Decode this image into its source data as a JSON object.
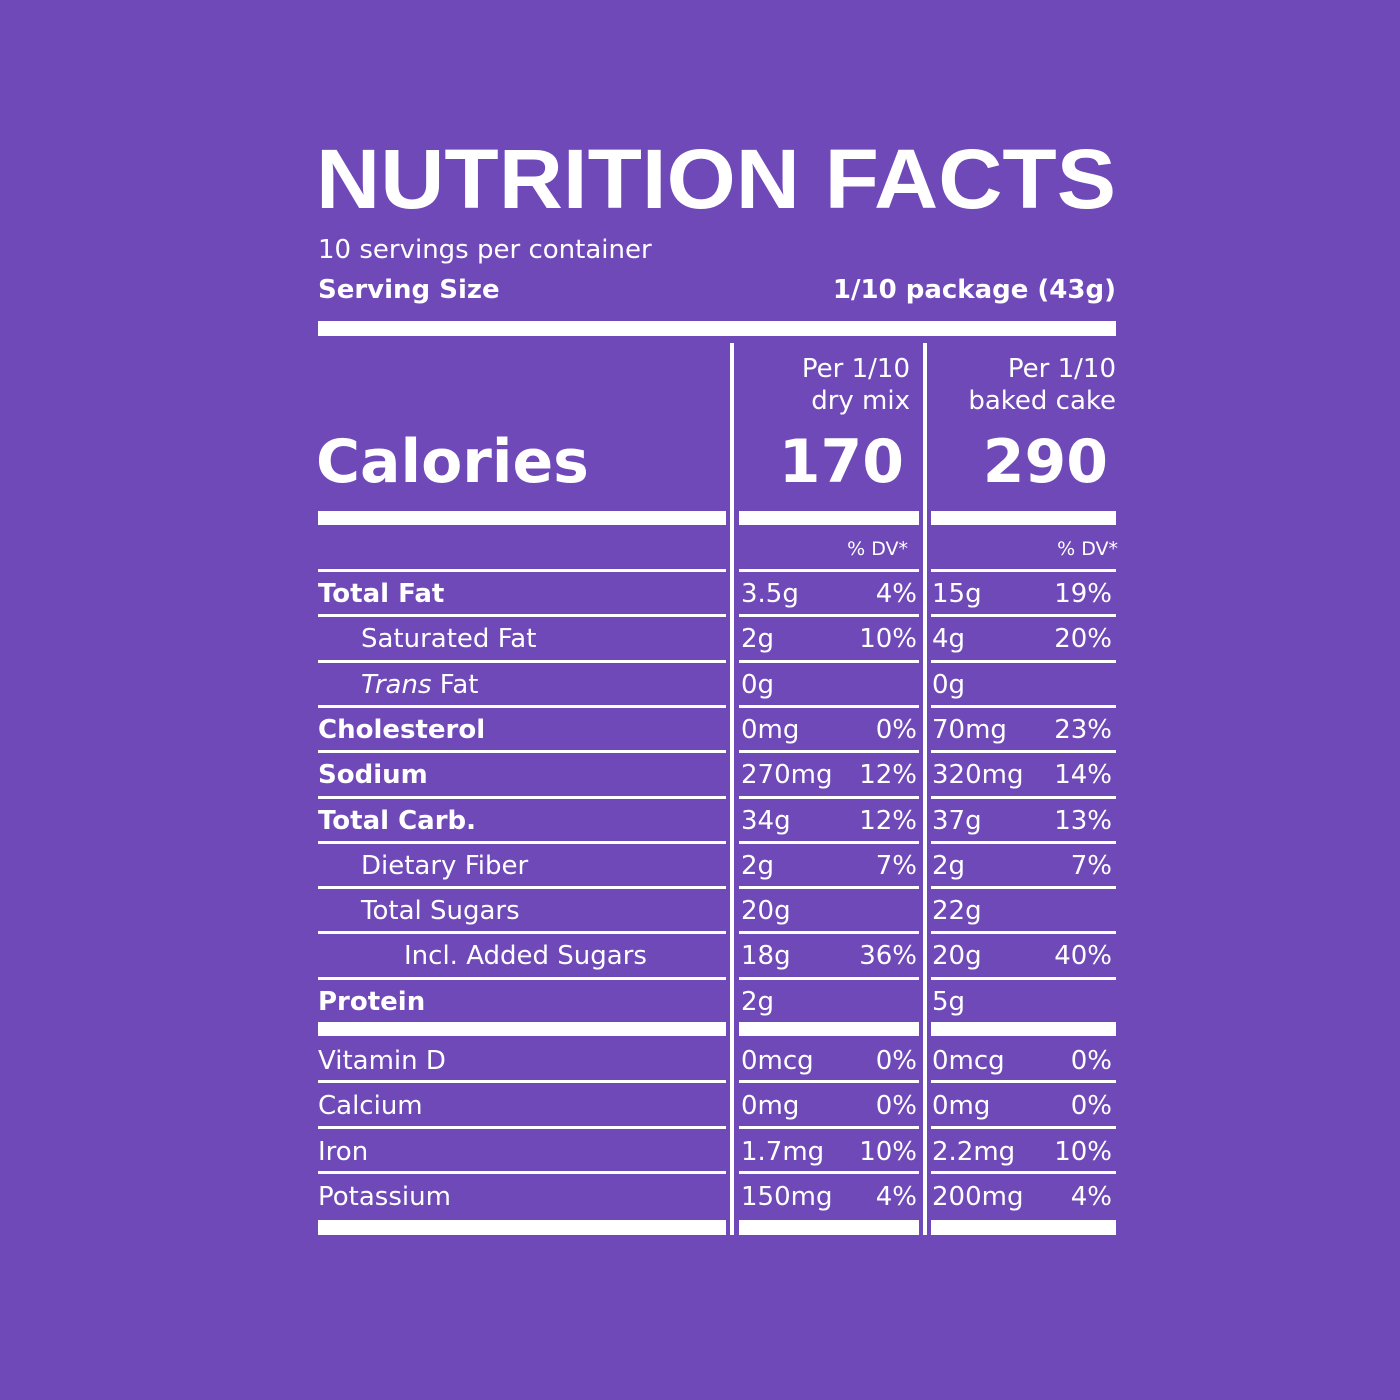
{
  "title": "NUTRITION FACTS",
  "servings": "10 servings per container",
  "serving_size_label": "Serving Size",
  "serving_size_value": "1/10 package (43g)",
  "columns": [
    {
      "line1": "Per 1/10",
      "line2": "dry mix",
      "calories": "170",
      "dv_label": "% DV*"
    },
    {
      "line1": "Per 1/10",
      "line2": "baked cake",
      "calories": "290",
      "dv_label": "% DV*"
    }
  ],
  "calories_label": "Calories",
  "nutrients": [
    {
      "label": "Total Fat",
      "bold": true,
      "indent": 0,
      "a1": "3.5g",
      "p1": "4%",
      "a2": "15g",
      "p2": "19%"
    },
    {
      "label": "Saturated Fat",
      "bold": false,
      "indent": 1,
      "a1": "2g",
      "p1": "10%",
      "a2": "4g",
      "p2": "20%"
    },
    {
      "label": " Fat",
      "italic_prefix": "Trans",
      "bold": false,
      "indent": 1,
      "a1": "0g",
      "p1": "",
      "a2": "0g",
      "p2": ""
    },
    {
      "label": "Cholesterol",
      "bold": true,
      "indent": 0,
      "a1": "0mg",
      "p1": "0%",
      "a2": "70mg",
      "p2": "23%"
    },
    {
      "label": "Sodium",
      "bold": true,
      "indent": 0,
      "a1": "270mg",
      "p1": "12%",
      "a2": "320mg",
      "p2": "14%"
    },
    {
      "label": "Total Carb.",
      "bold": true,
      "indent": 0,
      "a1": "34g",
      "p1": "12%",
      "a2": "37g",
      "p2": "13%"
    },
    {
      "label": "Dietary Fiber",
      "bold": false,
      "indent": 1,
      "a1": "2g",
      "p1": "7%",
      "a2": "2g",
      "p2": "7%"
    },
    {
      "label": "Total Sugars",
      "bold": false,
      "indent": 1,
      "a1": "20g",
      "p1": "",
      "a2": "22g",
      "p2": ""
    },
    {
      "label": "Incl. Added Sugars",
      "bold": false,
      "indent": 2,
      "a1": "18g",
      "p1": "36%",
      "a2": "20g",
      "p2": "40%"
    },
    {
      "label": "Protein",
      "bold": true,
      "indent": 0,
      "a1": "2g",
      "p1": "",
      "a2": "5g",
      "p2": ""
    }
  ],
  "vitamins": [
    {
      "label": "Vitamin D",
      "a1": "0mcg",
      "p1": "0%",
      "a2": "0mcg",
      "p2": "0%"
    },
    {
      "label": "Calcium",
      "a1": "0mg",
      "p1": "0%",
      "a2": "0mg",
      "p2": "0%"
    },
    {
      "label": "Iron",
      "a1": "1.7mg",
      "p1": "10%",
      "a2": "2.2mg",
      "p2": "10%"
    },
    {
      "label": "Potassium",
      "a1": "150mg",
      "p1": "4%",
      "a2": "200mg",
      "p2": "4%"
    }
  ]
}
